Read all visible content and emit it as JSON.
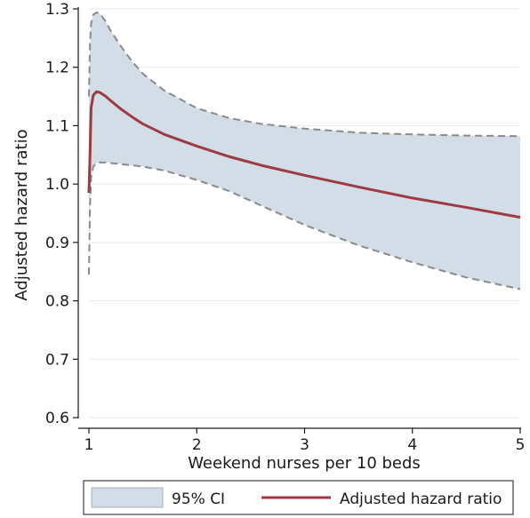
{
  "chart_data": {
    "type": "line",
    "xlabel": "Weekend nurses per 10 beds",
    "ylabel": "Adjusted hazard ratio",
    "xlim": [
      1,
      5
    ],
    "ylim": [
      0.6,
      1.3
    ],
    "x_ticks": [
      1,
      2,
      3,
      4,
      5
    ],
    "y_ticks": [
      0.6,
      0.7,
      0.8,
      0.9,
      1.0,
      1.1,
      1.2,
      1.3
    ],
    "x_tick_labels": [
      "1",
      "2",
      "3",
      "4",
      "5"
    ],
    "y_tick_labels": [
      "0.6",
      "0.7",
      "0.8",
      "0.9",
      "1.0",
      "1.1",
      "1.2",
      "1.3"
    ],
    "grid": true,
    "legend_position": "bottom",
    "series": [
      {
        "name": "Adjusted hazard ratio",
        "color": "#9e3a41",
        "x": [
          1.0,
          1.01,
          1.02,
          1.04,
          1.07,
          1.1,
          1.15,
          1.2,
          1.3,
          1.4,
          1.5,
          1.7,
          2.0,
          2.3,
          2.6,
          3.0,
          3.5,
          4.0,
          4.5,
          5.0
        ],
        "y": [
          0.985,
          1.05,
          1.13,
          1.152,
          1.158,
          1.157,
          1.151,
          1.143,
          1.128,
          1.115,
          1.103,
          1.085,
          1.065,
          1.047,
          1.032,
          1.015,
          0.995,
          0.976,
          0.96,
          0.943
        ]
      }
    ],
    "ci": {
      "name": "95% CI",
      "fill_color": "#d3dde7",
      "line_color": "#8a8a8a",
      "x": [
        1.0,
        1.01,
        1.02,
        1.04,
        1.07,
        1.1,
        1.15,
        1.2,
        1.3,
        1.4,
        1.5,
        1.7,
        2.0,
        2.3,
        2.6,
        3.0,
        3.5,
        4.0,
        4.5,
        5.0
      ],
      "lower": [
        0.845,
        0.96,
        1.01,
        1.03,
        1.036,
        1.037,
        1.037,
        1.036,
        1.034,
        1.032,
        1.03,
        1.023,
        1.007,
        0.988,
        0.963,
        0.93,
        0.895,
        0.866,
        0.84,
        0.82
      ],
      "upper": [
        1.15,
        1.24,
        1.275,
        1.29,
        1.294,
        1.292,
        1.28,
        1.263,
        1.235,
        1.21,
        1.189,
        1.16,
        1.13,
        1.113,
        1.103,
        1.095,
        1.088,
        1.085,
        1.083,
        1.082
      ]
    },
    "legend": [
      {
        "label": "95% CI",
        "kind": "area"
      },
      {
        "label": "Adjusted hazard ratio",
        "kind": "line"
      }
    ]
  }
}
